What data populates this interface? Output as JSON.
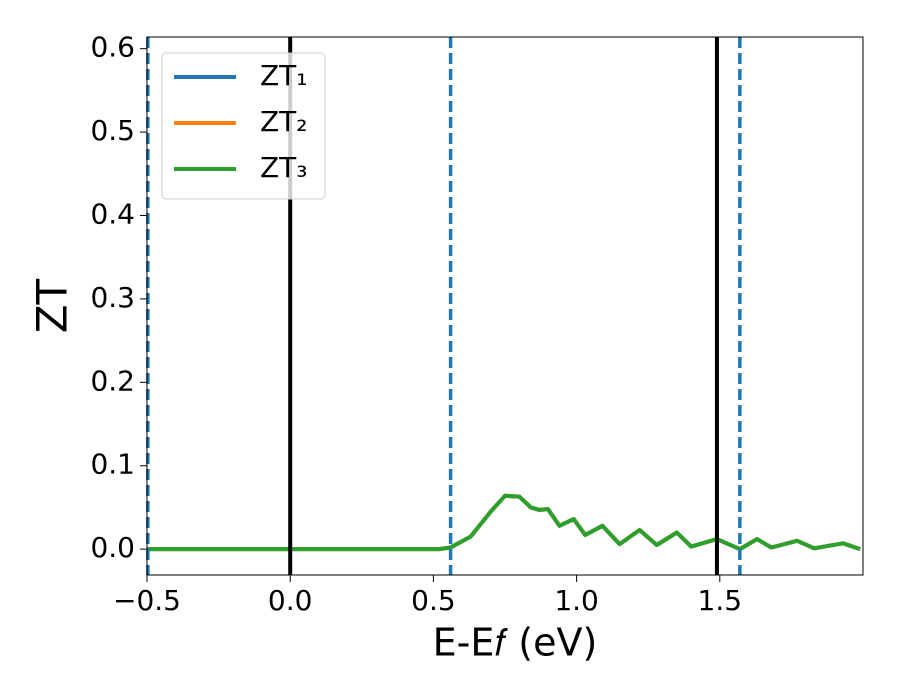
{
  "chart_data": {
    "type": "line",
    "xlabel": "E-E𝑓 (eV)",
    "ylabel": "ZT",
    "xlim": [
      -0.5,
      2.0
    ],
    "ylim": [
      -0.031,
      0.614
    ],
    "xticks": [
      {
        "value": -0.5,
        "label": "−0.5"
      },
      {
        "value": 0,
        "label": "0.0"
      },
      0.5,
      {
        "value": 1,
        "label": "1.0"
      },
      1.5
    ],
    "yticks": [
      {
        "value": 0,
        "label": "0.0"
      },
      0.1,
      0.2,
      0.3,
      0.4,
      0.5,
      0.6
    ],
    "grid": false,
    "legend": "upper left",
    "x": [
      -0.5,
      0.0,
      0.52,
      0.56,
      0.63,
      0.7,
      0.75,
      0.8,
      0.84,
      0.87,
      0.9,
      0.94,
      0.99,
      1.03,
      1.09,
      1.15,
      1.22,
      1.28,
      1.35,
      1.4,
      1.49,
      1.57,
      1.63,
      1.68,
      1.77,
      1.83,
      1.93,
      1.99
    ],
    "series": [
      {
        "name": "ZT₁",
        "color": "#1f77b4",
        "values": [
          0,
          0,
          0,
          0.002,
          0.015,
          0.045,
          0.064,
          0.063,
          0.05,
          0.047,
          0.048,
          0.028,
          0.036,
          0.017,
          0.028,
          0.006,
          0.023,
          0.005,
          0.02,
          0.003,
          0.012,
          0,
          0.012,
          0.002,
          0.01,
          0.001,
          0.007,
          0
        ]
      },
      {
        "name": "ZT₂",
        "color": "#ff7f0e",
        "values": [
          0,
          0,
          0,
          0.002,
          0.015,
          0.045,
          0.064,
          0.063,
          0.05,
          0.047,
          0.048,
          0.028,
          0.036,
          0.017,
          0.028,
          0.006,
          0.023,
          0.005,
          0.02,
          0.003,
          0.012,
          0,
          0.012,
          0.002,
          0.01,
          0.001,
          0.007,
          0
        ]
      },
      {
        "name": "ZT₃",
        "color": "#2ca02c",
        "values": [
          0,
          0,
          0,
          0.002,
          0.015,
          0.045,
          0.064,
          0.063,
          0.05,
          0.047,
          0.048,
          0.028,
          0.036,
          0.017,
          0.028,
          0.006,
          0.023,
          0.005,
          0.02,
          0.003,
          0.012,
          0,
          0.012,
          0.002,
          0.01,
          0.001,
          0.007,
          0
        ]
      }
    ],
    "vlines": [
      {
        "x": 0,
        "color": "#000000",
        "style": "solid"
      },
      {
        "x": 1.49,
        "color": "#000000",
        "style": "solid"
      },
      {
        "x": -0.497,
        "color": "#1f77b4",
        "style": "dashed"
      },
      {
        "x": 0.56,
        "color": "#1f77b4",
        "style": "dashed"
      },
      {
        "x": 1.57,
        "color": "#1f77b4",
        "style": "dashed"
      }
    ]
  }
}
